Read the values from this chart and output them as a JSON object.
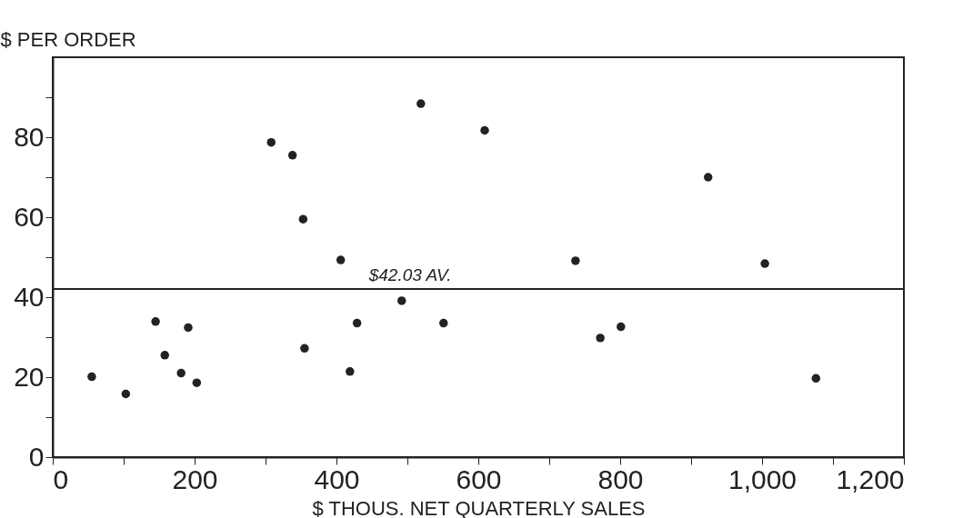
{
  "chart_data": {
    "type": "scatter",
    "xlabel": "$ THOUS. NET QUARTERLY SALES",
    "ylabel": "$ PER ORDER",
    "x": [
      55,
      103,
      145,
      158,
      181,
      191,
      203,
      308,
      338,
      353,
      355,
      406,
      419,
      429,
      492,
      519,
      551,
      609,
      737,
      772,
      801,
      924,
      1004,
      1076
    ],
    "series": [
      {
        "color": "#222222",
        "values": [
          20.1,
          15.8,
          33.9,
          25.5,
          21,
          32.4,
          18.6,
          78.7,
          75.5,
          59.5,
          27.2,
          49.3,
          21.4,
          33.5,
          39.1,
          88.4,
          33.5,
          81.7,
          49.1,
          29.8,
          32.6,
          70,
          48.4,
          19.7
        ]
      }
    ],
    "xlim": [
      0,
      1200
    ],
    "ylim": [
      0,
      100
    ],
    "xticks": [
      0,
      {
        "value": 100,
        "label": null
      },
      200,
      {
        "value": 300,
        "label": null
      },
      400,
      {
        "value": 500,
        "label": null
      },
      600,
      {
        "value": 700,
        "label": null
      },
      800,
      {
        "value": 900,
        "label": null
      },
      {
        "value": 1000,
        "label": "1,000"
      },
      {
        "value": 1100,
        "label": null
      },
      {
        "value": 1200,
        "label": "1,200"
      }
    ],
    "yticks": [
      0,
      {
        "value": 10,
        "label": null
      },
      20,
      {
        "value": 30,
        "label": null
      },
      40,
      {
        "value": 50,
        "label": null
      },
      60,
      {
        "value": 70,
        "label": null
      },
      80,
      {
        "value": 90,
        "label": null
      }
    ],
    "ref_lines": [
      {
        "axis": "y",
        "value": 42.03,
        "label": "$42.03 AV."
      }
    ],
    "marker": "circle",
    "grid": false,
    "legend": false
  }
}
